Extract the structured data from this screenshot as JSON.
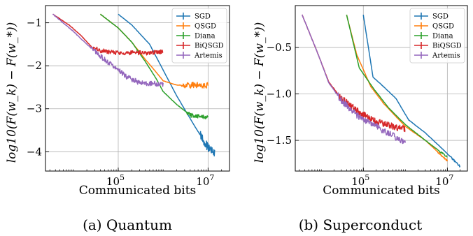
{
  "chart_data": [
    {
      "type": "line",
      "caption": "(a) Quantum",
      "xlabel": "Communicated bits",
      "ylabel": "log10(F(w_k) − F(w_*))",
      "x_scale": "log",
      "xlim": [
        2400,
        30000000
      ],
      "ylim": [
        -4.45,
        -0.6
      ],
      "x_ticks": [
        {
          "value": 100000,
          "base": "10",
          "exp": "5"
        },
        {
          "value": 10000000,
          "base": "10",
          "exp": "7"
        }
      ],
      "y_ticks": [
        {
          "value": -1,
          "label": "−1"
        },
        {
          "value": -2,
          "label": "−2"
        },
        {
          "value": -3,
          "label": "−3"
        },
        {
          "value": -4,
          "label": "−4"
        }
      ],
      "grid": true,
      "legend_position": "top-right",
      "series": [
        {
          "name": "SGD",
          "color": "#1f77b4",
          "points": [
            [
              100000,
              -0.8
            ],
            [
              200000,
              -1.05
            ],
            [
              500000,
              -1.5
            ],
            [
              1000000,
              -2.1
            ],
            [
              2000000,
              -2.7
            ],
            [
              5000000,
              -3.4
            ],
            [
              10000000,
              -3.9
            ],
            [
              14000000,
              -4.05
            ]
          ]
        },
        {
          "name": "QSGD",
          "color": "#ff7f0e",
          "points": [
            [
              40000,
              -0.8
            ],
            [
              100000,
              -1.12
            ],
            [
              200000,
              -1.45
            ],
            [
              400000,
              -1.85
            ],
            [
              700000,
              -2.15
            ],
            [
              1000000,
              -2.35
            ],
            [
              2000000,
              -2.45
            ],
            [
              5000000,
              -2.45
            ],
            [
              10000000,
              -2.45
            ]
          ]
        },
        {
          "name": "Diana",
          "color": "#2ca02c",
          "points": [
            [
              40000,
              -0.8
            ],
            [
              100000,
              -1.12
            ],
            [
              200000,
              -1.45
            ],
            [
              400000,
              -1.9
            ],
            [
              700000,
              -2.3
            ],
            [
              1000000,
              -2.6
            ],
            [
              2000000,
              -2.9
            ],
            [
              4000000,
              -3.15
            ],
            [
              10000000,
              -3.2
            ]
          ]
        },
        {
          "name": "BiQSGD",
          "color": "#d62728",
          "points": [
            [
              3500,
              -0.8
            ],
            [
              8000,
              -1.05
            ],
            [
              15000,
              -1.3
            ],
            [
              25000,
              -1.55
            ],
            [
              40000,
              -1.65
            ],
            [
              100000,
              -1.7
            ],
            [
              500000,
              -1.7
            ],
            [
              1000000,
              -1.67
            ]
          ]
        },
        {
          "name": "Artemis",
          "color": "#9467bd",
          "points": [
            [
              3500,
              -0.8
            ],
            [
              10000,
              -1.2
            ],
            [
              20000,
              -1.5
            ],
            [
              40000,
              -1.78
            ],
            [
              80000,
              -2.02
            ],
            [
              150000,
              -2.25
            ],
            [
              300000,
              -2.4
            ],
            [
              600000,
              -2.42
            ],
            [
              1000000,
              -2.42
            ]
          ]
        }
      ]
    },
    {
      "type": "line",
      "caption": "(b) Superconduct",
      "xlabel": "Communicated bits",
      "ylabel": "log10(F(w_k) − F(w_*))",
      "x_scale": "log",
      "xlim": [
        2400,
        30000000
      ],
      "ylim": [
        -1.83,
        -0.05
      ],
      "x_ticks": [
        {
          "value": 100000,
          "base": "10",
          "exp": "5"
        },
        {
          "value": 10000000,
          "base": "10",
          "exp": "7"
        }
      ],
      "y_ticks": [
        {
          "value": -0.5,
          "label": "−0.5"
        },
        {
          "value": -1.0,
          "label": "−1.0"
        },
        {
          "value": -1.5,
          "label": "−1.5"
        }
      ],
      "grid": true,
      "legend_position": "top-right",
      "series": [
        {
          "name": "SGD",
          "color": "#1f77b4",
          "points": [
            [
              100000,
              -0.15
            ],
            [
              170000,
              -0.82
            ],
            [
              300000,
              -0.92
            ],
            [
              600000,
              -1.05
            ],
            [
              1200000,
              -1.28
            ],
            [
              3000000,
              -1.42
            ],
            [
              8000000,
              -1.6
            ],
            [
              20000000,
              -1.78
            ]
          ]
        },
        {
          "name": "QSGD",
          "color": "#ff7f0e",
          "points": [
            [
              40000,
              -0.15
            ],
            [
              70000,
              -0.58
            ],
            [
              150000,
              -0.92
            ],
            [
              300000,
              -1.1
            ],
            [
              1000000,
              -1.35
            ],
            [
              3000000,
              -1.5
            ],
            [
              10000000,
              -1.72
            ]
          ]
        },
        {
          "name": "Diana",
          "color": "#2ca02c",
          "points": [
            [
              40000,
              -0.15
            ],
            [
              80000,
              -0.72
            ],
            [
              180000,
              -0.95
            ],
            [
              400000,
              -1.15
            ],
            [
              1000000,
              -1.33
            ],
            [
              3000000,
              -1.5
            ],
            [
              10000000,
              -1.68
            ]
          ]
        },
        {
          "name": "BiQSGD",
          "color": "#d62728",
          "points": [
            [
              3500,
              -0.15
            ],
            [
              8000,
              -0.55
            ],
            [
              15000,
              -0.87
            ],
            [
              30000,
              -1.05
            ],
            [
              80000,
              -1.2
            ],
            [
              200000,
              -1.3
            ],
            [
              500000,
              -1.35
            ],
            [
              1000000,
              -1.38
            ]
          ]
        },
        {
          "name": "Artemis",
          "color": "#9467bd",
          "points": [
            [
              3500,
              -0.15
            ],
            [
              8000,
              -0.55
            ],
            [
              15000,
              -0.88
            ],
            [
              30000,
              -1.07
            ],
            [
              80000,
              -1.25
            ],
            [
              200000,
              -1.35
            ],
            [
              500000,
              -1.45
            ],
            [
              1000000,
              -1.53
            ]
          ]
        }
      ]
    }
  ]
}
